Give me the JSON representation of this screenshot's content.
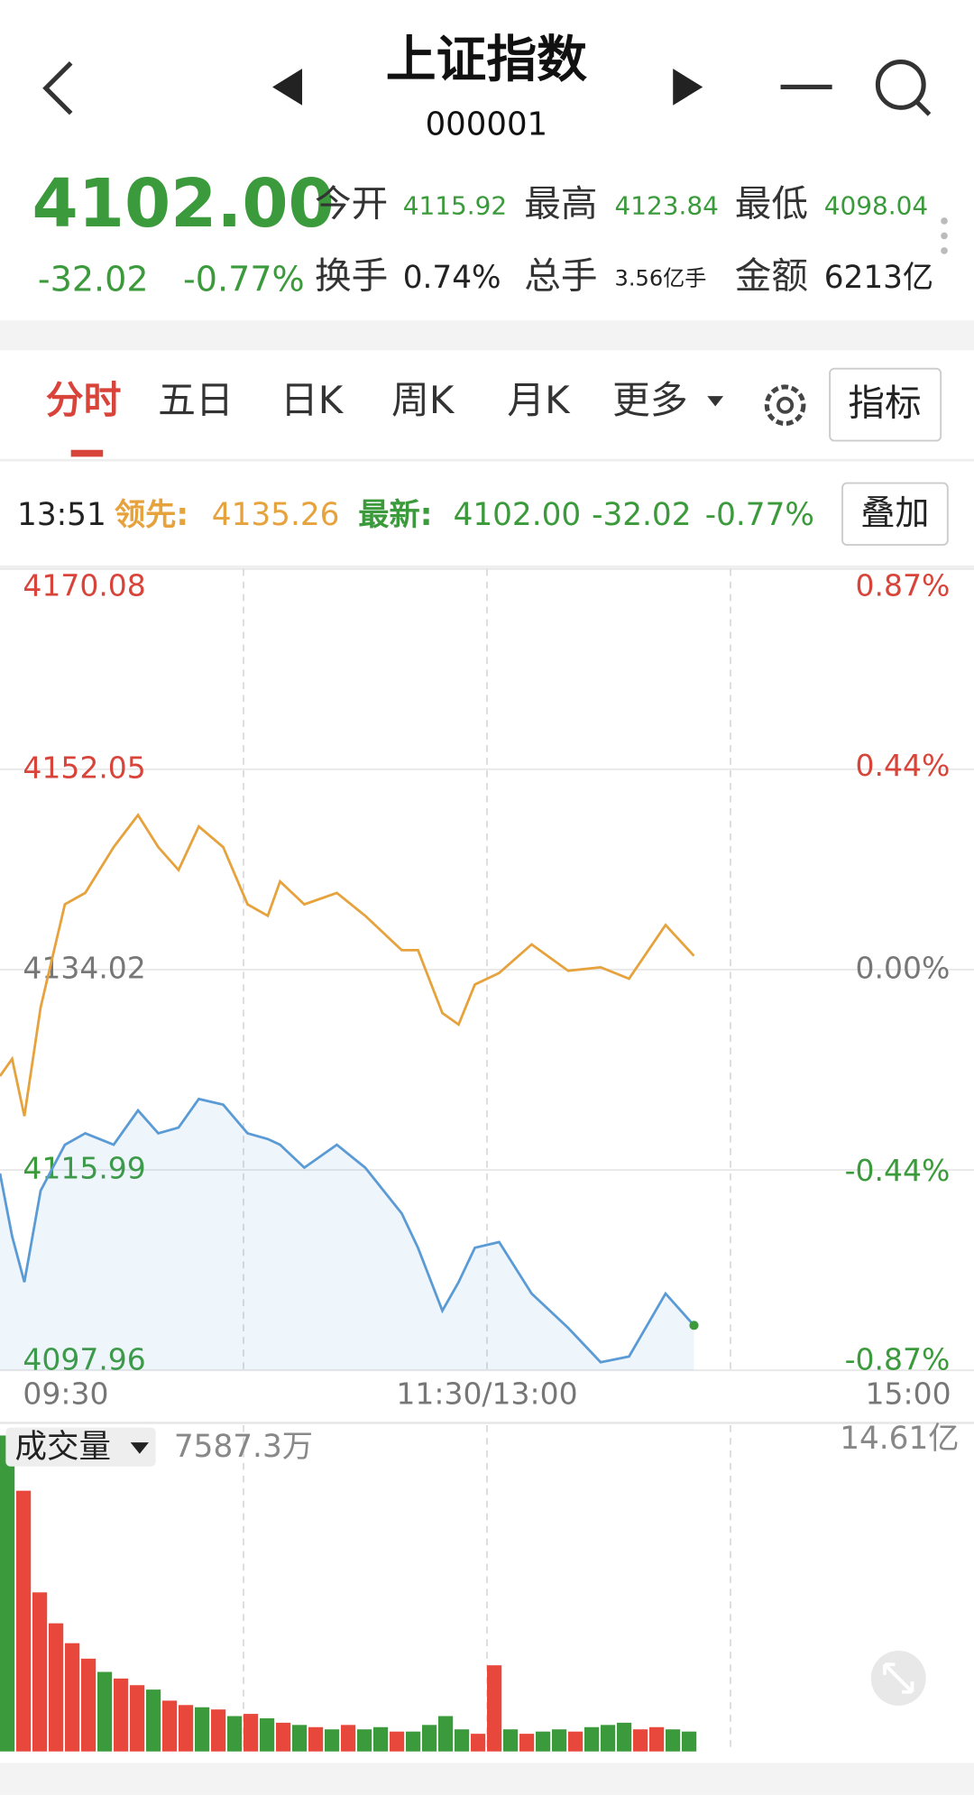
{
  "header": {
    "title": "上证指数",
    "code": "000001"
  },
  "quote": {
    "price": "4102.00",
    "change": "-32.02",
    "change_pct": "-0.77%",
    "stats": [
      {
        "label": "今开",
        "value": "4115.92"
      },
      {
        "label": "最高",
        "value": "4123.84"
      },
      {
        "label": "最低",
        "value": "4098.04"
      },
      {
        "label": "换手",
        "value": "0.74%"
      },
      {
        "label": "总手",
        "value": "3.56亿手"
      },
      {
        "label": "金额",
        "value": "6213亿"
      }
    ]
  },
  "tabs": {
    "items": [
      "分时",
      "五日",
      "日K",
      "周K",
      "月K",
      "更多"
    ],
    "button": "指标"
  },
  "info_bar": {
    "time": "13:51",
    "leading_label": "领先:",
    "leading_value": "4135.26",
    "latest_label": "最新:",
    "latest_value": "4102.00",
    "latest_change": "-32.02",
    "latest_pct": "-0.77%",
    "button": "叠加"
  },
  "chart_data": [
    {
      "type": "line",
      "up_color": "#d8443a",
      "down_color": "#3b9a3b",
      "flat_color": "#777777",
      "x": [
        0,
        3,
        6,
        10,
        16,
        21,
        28,
        34,
        39,
        44,
        49,
        55,
        61,
        66,
        69,
        75,
        83,
        90,
        99,
        103,
        109,
        113,
        117,
        123,
        131,
        140,
        148,
        155,
        164,
        171
      ],
      "xlim": [
        0,
        240
      ],
      "xticks": [
        {
          "value": 0,
          "label": "09:30"
        },
        {
          "value": 60,
          "label": null
        },
        {
          "value": 120,
          "label": "11:30/13:00"
        },
        {
          "value": 180,
          "label": null
        },
        {
          "value": 240,
          "label": "15:00"
        }
      ],
      "ylim": [
        4097.96,
        4170.08
      ],
      "yticks": [
        4170.08,
        4152.05,
        4134.02,
        4115.99,
        4097.96
      ],
      "y2lim": [
        -0.87,
        0.87
      ],
      "y2ticks": [
        {
          "value": 0.87,
          "label": "0.87%"
        },
        {
          "value": 0.44,
          "label": "0.44%"
        },
        {
          "value": 0,
          "label": "0.00%"
        },
        {
          "value": -0.44,
          "label": "-0.44%"
        },
        {
          "value": -0.87,
          "label": "-0.87%"
        }
      ],
      "series": [
        {
          "name": "领先",
          "color": "#e6a23c",
          "values": [
            4124.44,
            4125.98,
            4120.83,
            4130.62,
            4139.89,
            4140.92,
            4145.04,
            4147.93,
            4145.04,
            4142.98,
            4146.9,
            4145.04,
            4139.89,
            4138.86,
            4141.95,
            4139.89,
            4140.92,
            4138.86,
            4135.77,
            4135.77,
            4130.1,
            4129.07,
            4132.68,
            4133.71,
            4136.29,
            4133.92,
            4134.23,
            4133.2,
            4138.04,
            4135.26
          ]
        },
        {
          "name": "最新",
          "color": "#5b9bd5",
          "values": [
            4115.68,
            4110.01,
            4105.89,
            4114.13,
            4118.26,
            4119.29,
            4118.26,
            4121.35,
            4119.29,
            4119.8,
            4122.38,
            4121.86,
            4119.29,
            4118.77,
            4118.26,
            4116.2,
            4118.26,
            4116.2,
            4112.07,
            4108.98,
            4103.32,
            4105.89,
            4108.98,
            4109.5,
            4104.86,
            4101.77,
            4098.68,
            4099.2,
            4104.86,
            4102.0
          ]
        }
      ]
    },
    {
      "type": "bar",
      "title": "成交量",
      "current": "7587.3万",
      "x": [
        0,
        4,
        8,
        12,
        16,
        20,
        24,
        28,
        32,
        36,
        40,
        44,
        48,
        52,
        56,
        60,
        64,
        68,
        72,
        76,
        80,
        84,
        88,
        92,
        96,
        100,
        104,
        108,
        112,
        116,
        120,
        124,
        128,
        132,
        136,
        140,
        144,
        148,
        152,
        156,
        160,
        164,
        168
      ],
      "xlim": [
        0,
        240
      ],
      "values": [
        14.3,
        11.8,
        7.2,
        5.8,
        4.9,
        4.2,
        3.6,
        3.3,
        3.0,
        2.8,
        2.3,
        2.1,
        2.0,
        1.9,
        1.6,
        1.7,
        1.5,
        1.3,
        1.2,
        1.1,
        1.0,
        1.2,
        1.0,
        1.1,
        0.9,
        0.9,
        1.2,
        1.6,
        1.0,
        0.8,
        3.9,
        1.0,
        0.8,
        0.9,
        1.0,
        0.9,
        1.1,
        1.2,
        1.3,
        1.0,
        1.1,
        1.0,
        0.9
      ],
      "colors": [
        "#3b9a3b",
        "#e8473c",
        "#e8473c",
        "#e8473c",
        "#e8473c",
        "#e8473c",
        "#3b9a3b",
        "#e8473c",
        "#e8473c",
        "#3b9a3b",
        "#e8473c",
        "#e8473c",
        "#3b9a3b",
        "#e8473c",
        "#3b9a3b",
        "#e8473c",
        "#3b9a3b",
        "#e8473c",
        "#3b9a3b",
        "#e8473c",
        "#3b9a3b",
        "#e8473c",
        "#3b9a3b",
        "#3b9a3b",
        "#e8473c",
        "#3b9a3b",
        "#3b9a3b",
        "#3b9a3b",
        "#3b9a3b",
        "#e8473c",
        "#e8473c",
        "#3b9a3b",
        "#e8473c",
        "#3b9a3b",
        "#3b9a3b",
        "#e8473c",
        "#3b9a3b",
        "#3b9a3b",
        "#3b9a3b",
        "#e8473c",
        "#e8473c",
        "#3b9a3b",
        "#3b9a3b"
      ],
      "ylim": [
        0,
        14.61
      ],
      "yticks": [
        {
          "value": 14.61,
          "label": "14.61亿"
        }
      ]
    }
  ]
}
